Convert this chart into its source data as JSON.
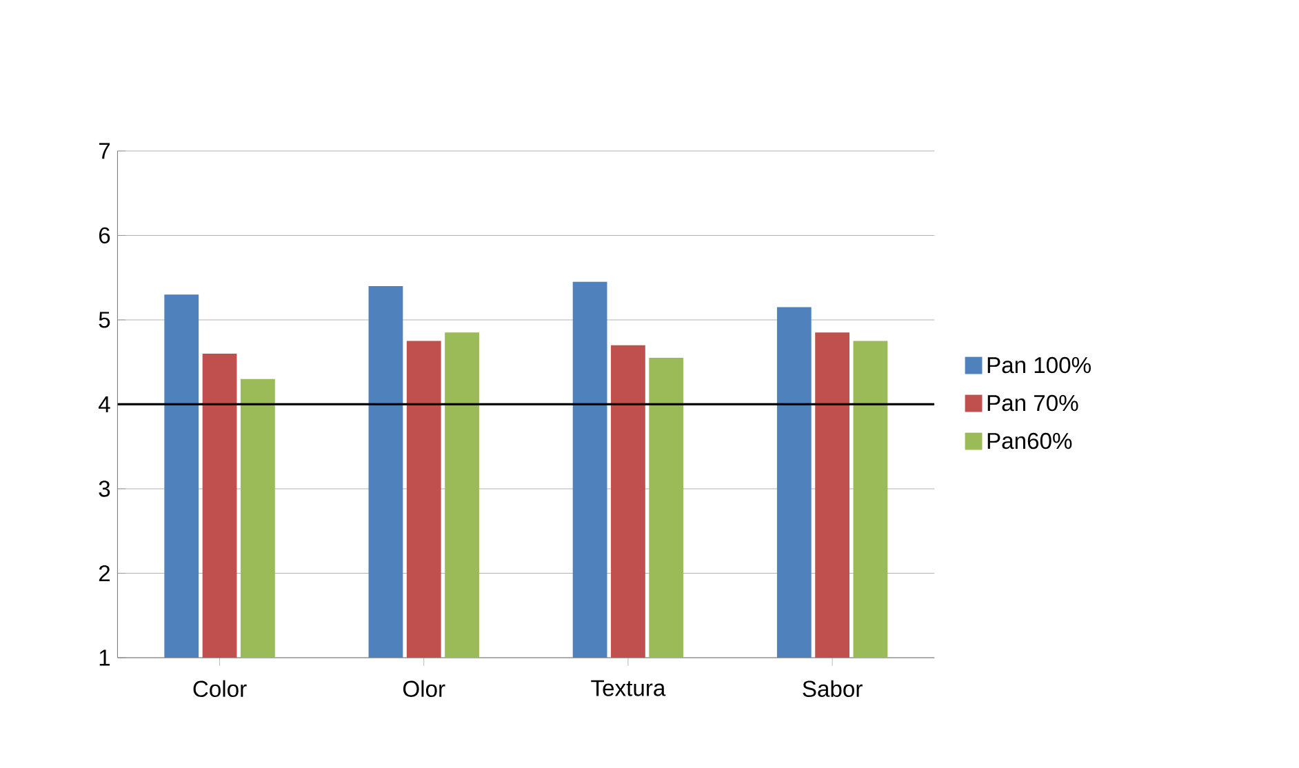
{
  "chart_data": {
    "type": "bar",
    "categories": [
      "Color",
      "Olor",
      "Textura",
      "Sabor"
    ],
    "series": [
      {
        "name": "Pan 100%",
        "color": "#4f81bd",
        "values": [
          5.3,
          5.4,
          5.45,
          5.15
        ]
      },
      {
        "name": "Pan 70%",
        "color": "#c0504d",
        "values": [
          4.6,
          4.75,
          4.7,
          4.85
        ]
      },
      {
        "name": "Pan60%",
        "color": "#9bbb59",
        "values": [
          4.3,
          4.85,
          4.55,
          4.75
        ]
      }
    ],
    "ylim": [
      1,
      7
    ],
    "yticks": [
      1,
      2,
      3,
      4,
      5,
      6,
      7
    ],
    "grid": "y",
    "legend": "right",
    "ref_lines": [
      {
        "axis": "y",
        "value": 4,
        "color": "#000000"
      }
    ]
  }
}
